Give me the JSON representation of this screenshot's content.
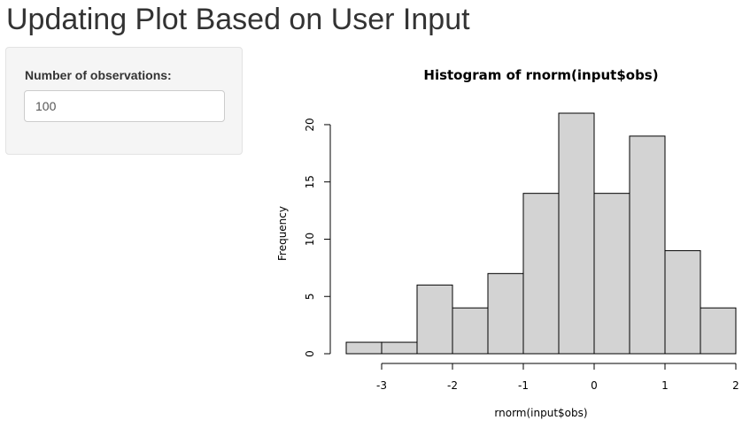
{
  "page": {
    "title": "Updating Plot Based on User Input"
  },
  "sidebar": {
    "obs_label": "Number of observations:",
    "obs_value": "100"
  },
  "chart_data": {
    "type": "bar",
    "title": "Histogram of rnorm(input$obs)",
    "xlabel": "rnorm(input$obs)",
    "ylabel": "Frequency",
    "bins": [
      {
        "start": -3.5,
        "end": -3.0,
        "count": 1
      },
      {
        "start": -3.0,
        "end": -2.5,
        "count": 1
      },
      {
        "start": -2.5,
        "end": -2.0,
        "count": 6
      },
      {
        "start": -2.0,
        "end": -1.5,
        "count": 4
      },
      {
        "start": -1.5,
        "end": -1.0,
        "count": 7
      },
      {
        "start": -1.0,
        "end": -0.5,
        "count": 14
      },
      {
        "start": -0.5,
        "end": 0.0,
        "count": 21
      },
      {
        "start": 0.0,
        "end": 0.5,
        "count": 14
      },
      {
        "start": 0.5,
        "end": 1.0,
        "count": 19
      },
      {
        "start": 1.0,
        "end": 1.5,
        "count": 9
      },
      {
        "start": 1.5,
        "end": 2.0,
        "count": 4
      }
    ],
    "xticks": [
      -3,
      -2,
      -1,
      0,
      1,
      2
    ],
    "yticks": [
      0,
      5,
      10,
      15,
      20
    ],
    "xlim": [
      -3.5,
      2.0
    ],
    "ylim": [
      0,
      21
    ],
    "grid": false,
    "bar_fill": "#d3d3d3",
    "bar_stroke": "#000000"
  }
}
